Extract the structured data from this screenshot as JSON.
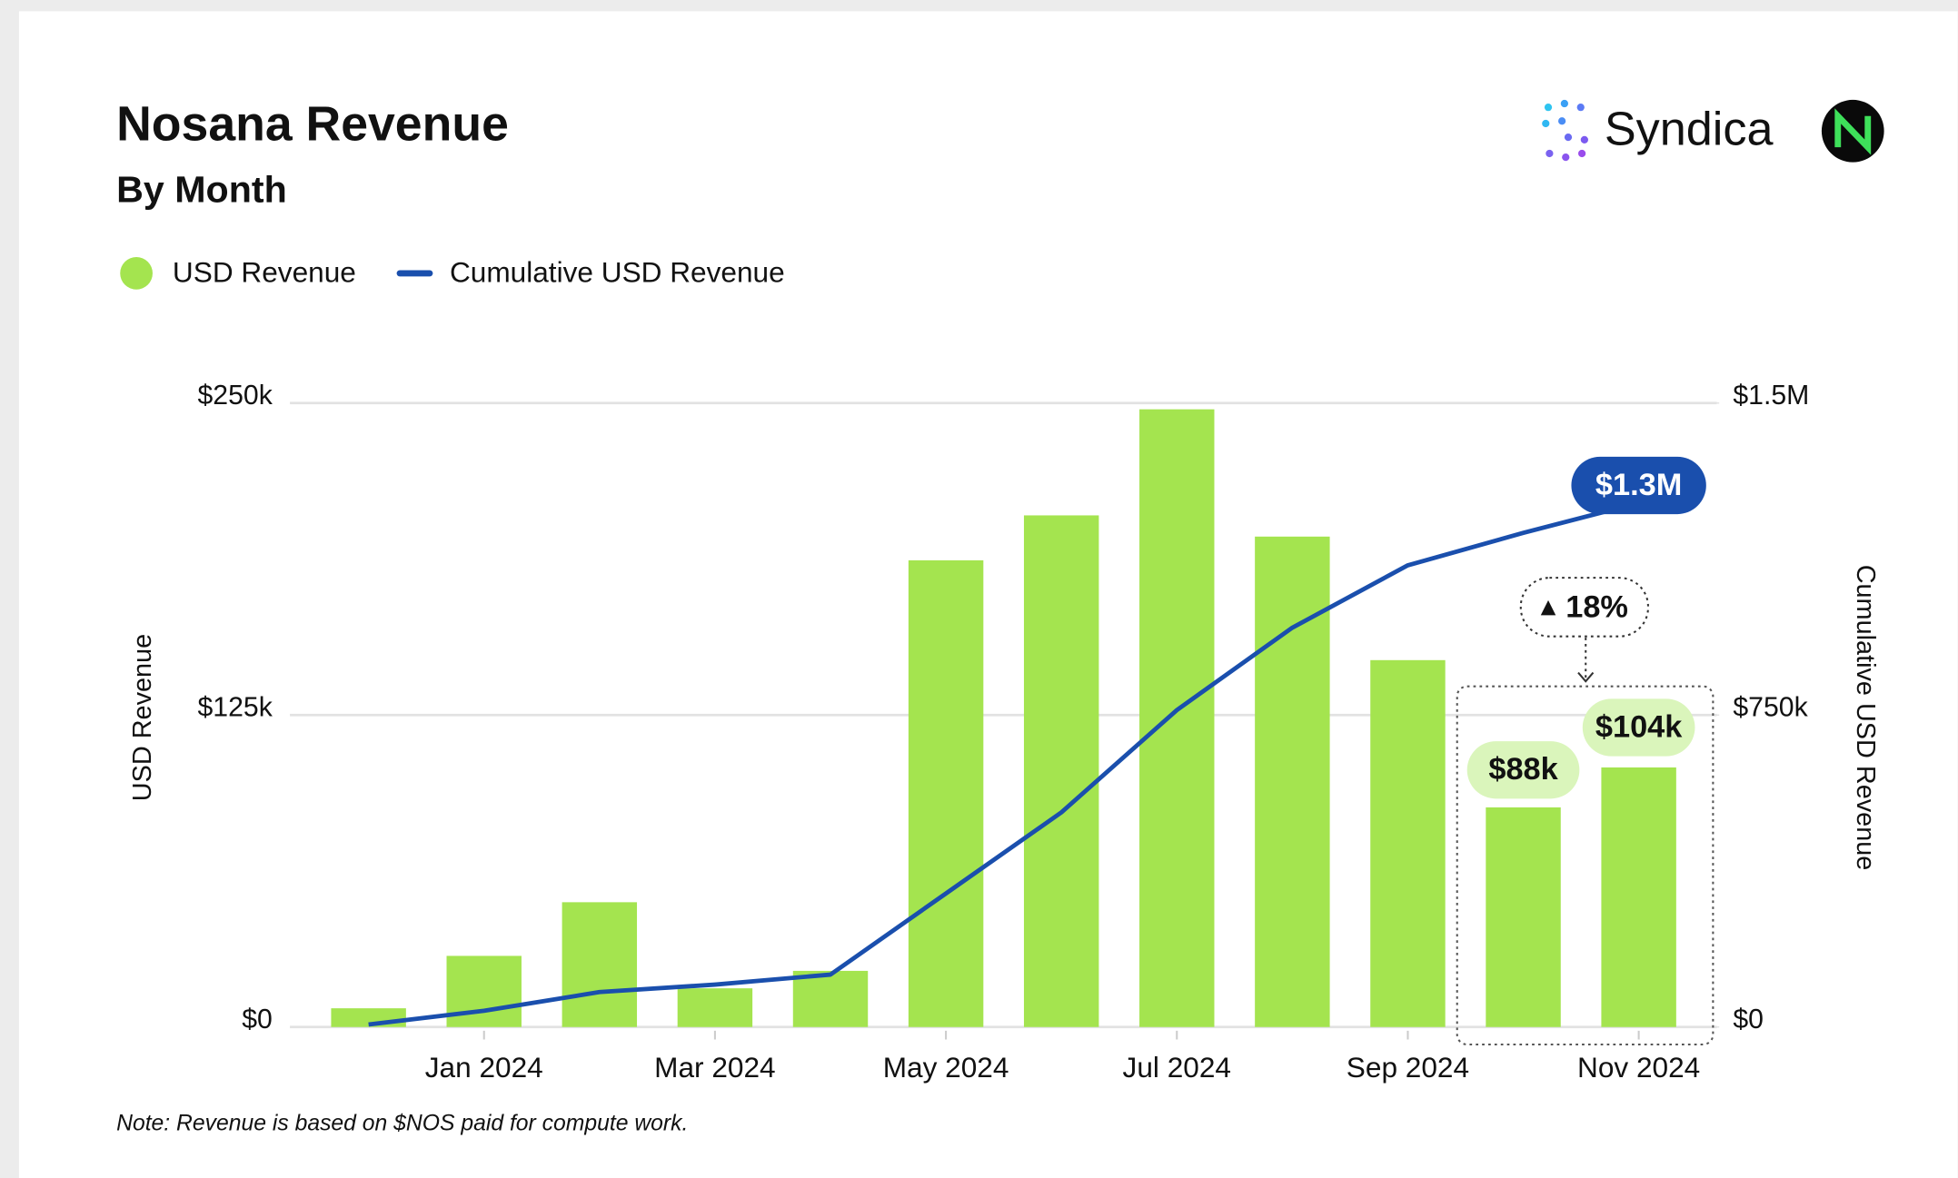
{
  "chart_data": {
    "type": "bar",
    "title": "Nosana Revenue",
    "subtitle": "By Month",
    "brand": "Syndica",
    "ylabel": "USD Revenue",
    "y2label": "Cumulative USD Revenue",
    "note": "Note: Revenue is based on $NOS paid for compute work.",
    "categories": [
      null,
      "Jan 2024",
      null,
      "Mar 2024",
      null,
      "May 2024",
      null,
      "Jul 2024",
      null,
      "Sep 2024",
      null,
      "Nov 2024"
    ],
    "series": [
      {
        "name": "USD Revenue",
        "type": "bar",
        "color": "#a4e44f",
        "values": [
          7500,
          28500,
          50000,
          15500,
          22500,
          187000,
          205000,
          247500,
          196500,
          147000,
          88000,
          104000
        ],
        "value_labels": [
          null,
          null,
          null,
          null,
          null,
          null,
          null,
          null,
          null,
          null,
          "$88k",
          "$104k"
        ]
      },
      {
        "name": "Cumulative USD Revenue",
        "type": "line",
        "axis": "y2",
        "color": "#1a4fad",
        "values": [
          6000,
          39000,
          84000,
          102000,
          126000,
          321000,
          516000,
          762000,
          960000,
          1110000,
          1188000,
          1260000
        ],
        "value_labels": [
          null,
          null,
          null,
          null,
          null,
          null,
          null,
          null,
          null,
          null,
          null,
          "$1.3M"
        ]
      }
    ],
    "annotations": [
      {
        "text": "18%"
      }
    ],
    "ylim": [
      0,
      250000
    ],
    "yticks": [
      {
        "value": 0,
        "label": "$0"
      },
      {
        "value": 125000,
        "label": "$125k"
      },
      {
        "value": 250000,
        "label": "$250k"
      }
    ],
    "y2lim": [
      0,
      1500000
    ],
    "y2ticks": [
      {
        "value": 0,
        "label": "$0"
      },
      {
        "value": 750000,
        "label": "$750k"
      },
      {
        "value": 1500000,
        "label": "$1.5M"
      }
    ],
    "grid": true,
    "legend": "top-left"
  }
}
